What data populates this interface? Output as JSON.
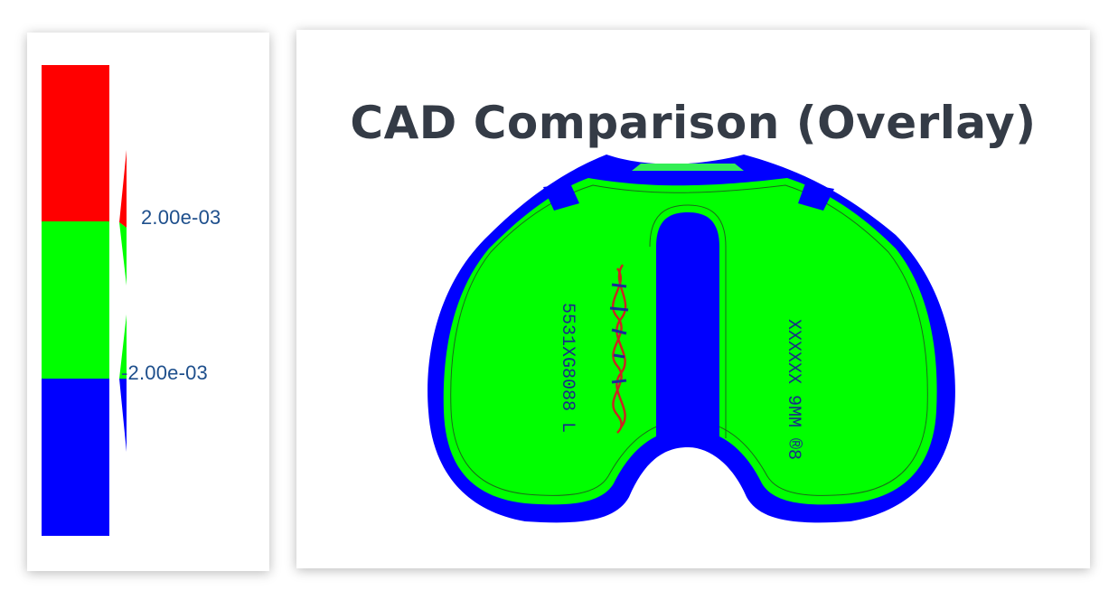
{
  "legend": {
    "upper_label": "2.00e-03",
    "lower_label": "-2.00e-03",
    "colors": {
      "above_upper": "#ff0000",
      "within_tolerance": "#00ff00",
      "below_lower": "#0000ff"
    }
  },
  "main": {
    "title": "CAD Comparison (Overlay)",
    "engraving_left": "5531XG8088 L",
    "engraving_right": "XXXXXX 9MM ®8"
  }
}
